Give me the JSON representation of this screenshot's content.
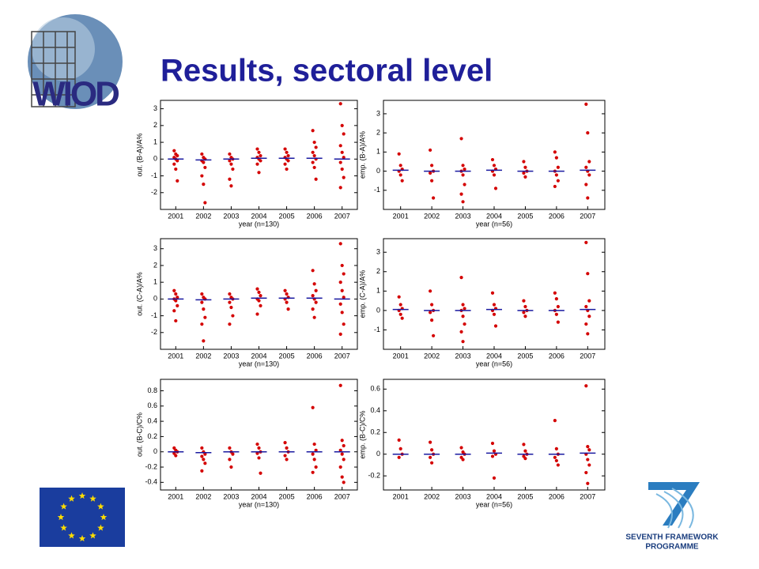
{
  "slide": {
    "title": "Results, sectoral level",
    "logo_text": "WIOD",
    "fp7_line1": "SEVENTH FRAMEWORK",
    "fp7_line2": "PROGRAMME"
  },
  "chart_data": [
    {
      "type": "strip",
      "ylabel": "out. (B-A)/A%",
      "xlabel": "year (n=130)",
      "color": "#d40000",
      "median_color": "#1a1aa0",
      "categories": [
        "2001",
        "2002",
        "2003",
        "2004",
        "2005",
        "2006",
        "2007"
      ],
      "values": [
        [
          0.5,
          0.3,
          0.2,
          0.1,
          0,
          -0.1,
          -0.3,
          -0.6,
          -1.3
        ],
        [
          0.3,
          0.1,
          0,
          -0.1,
          -0.2,
          -0.5,
          -1,
          -1.5,
          -2.6
        ],
        [
          0.3,
          0.1,
          0,
          -0.1,
          -0.3,
          -0.6,
          -1.2,
          -1.6
        ],
        [
          0.6,
          0.4,
          0.2,
          0.1,
          0,
          -0.1,
          -0.3,
          -0.8
        ],
        [
          0.6,
          0.4,
          0.2,
          0.1,
          0,
          -0.1,
          -0.3,
          -0.6
        ],
        [
          1.7,
          1,
          0.7,
          0.4,
          0.2,
          0,
          -0.2,
          -0.5,
          -1.2
        ],
        [
          3.3,
          2,
          1.5,
          0.8,
          0.4,
          0.1,
          -0.2,
          -0.6,
          -1.1,
          -1.7
        ]
      ],
      "medians": [
        0,
        -0.05,
        0,
        0.05,
        0.05,
        0.05,
        0
      ],
      "ylim": [
        -3,
        3.5
      ],
      "yticks": [
        -2,
        -1,
        0,
        1,
        2,
        3
      ]
    },
    {
      "type": "strip",
      "ylabel": "emp. (B-A)/A%",
      "xlabel": "year (n=56)",
      "color": "#d40000",
      "median_color": "#1a1aa0",
      "categories": [
        "2001",
        "2002",
        "2003",
        "2004",
        "2005",
        "2006",
        "2007"
      ],
      "values": [
        [
          0.9,
          0.3,
          0.1,
          0,
          -0.2,
          -0.5
        ],
        [
          1.1,
          0.3,
          0,
          -0.1,
          -0.5,
          -1.4
        ],
        [
          1.7,
          0.3,
          0.1,
          0,
          -0.2,
          -0.7,
          -1.2,
          -1.6
        ],
        [
          0.6,
          0.3,
          0.1,
          0,
          -0.2,
          -0.9
        ],
        [
          0.5,
          0.2,
          0,
          -0.1,
          -0.3
        ],
        [
          1,
          0.7,
          0.2,
          0,
          -0.2,
          -0.5,
          -0.8
        ],
        [
          3.5,
          2,
          0.5,
          0.2,
          0,
          -0.2,
          -0.7,
          -1.4
        ]
      ],
      "medians": [
        0.05,
        0,
        0,
        0.05,
        0,
        0,
        0.05
      ],
      "ylim": [
        -2,
        3.7
      ],
      "yticks": [
        -1,
        0,
        1,
        2,
        3
      ]
    },
    {
      "type": "strip",
      "ylabel": "out. (C-A)/A%",
      "xlabel": "year (n=130)",
      "color": "#d40000",
      "median_color": "#1a1aa0",
      "categories": [
        "2001",
        "2002",
        "2003",
        "2004",
        "2005",
        "2006",
        "2007"
      ],
      "values": [
        [
          0.5,
          0.3,
          0.1,
          0,
          -0.1,
          -0.4,
          -0.7,
          -1.3
        ],
        [
          0.3,
          0.1,
          0,
          -0.2,
          -0.6,
          -1.1,
          -1.5,
          -2.5
        ],
        [
          0.3,
          0.1,
          0,
          -0.2,
          -0.5,
          -1,
          -1.5
        ],
        [
          0.6,
          0.4,
          0.2,
          0,
          -0.1,
          -0.4,
          -0.9
        ],
        [
          0.5,
          0.3,
          0.1,
          0,
          -0.2,
          -0.6
        ],
        [
          1.7,
          0.9,
          0.5,
          0.2,
          0,
          -0.2,
          -0.6,
          -1.1
        ],
        [
          3.3,
          2,
          1.5,
          1,
          0.5,
          0.1,
          -0.3,
          -0.8,
          -1.5,
          -2.1
        ]
      ],
      "medians": [
        0,
        -0.05,
        0,
        0.05,
        0.05,
        0.05,
        0
      ],
      "ylim": [
        -3,
        3.6
      ],
      "yticks": [
        -2,
        -1,
        0,
        1,
        2,
        3
      ]
    },
    {
      "type": "strip",
      "ylabel": "emp. (C-A)/A%",
      "xlabel": "year (n=56)",
      "color": "#d40000",
      "median_color": "#1a1aa0",
      "categories": [
        "2001",
        "2002",
        "2003",
        "2004",
        "2005",
        "2006",
        "2007"
      ],
      "values": [
        [
          0.7,
          0.3,
          0.1,
          0,
          -0.2,
          -0.4
        ],
        [
          1,
          0.3,
          0,
          -0.1,
          -0.5,
          -1.3
        ],
        [
          1.7,
          0.3,
          0.1,
          0,
          -0.3,
          -0.7,
          -1.1,
          -1.6
        ],
        [
          0.9,
          0.3,
          0.1,
          0,
          -0.2,
          -0.8
        ],
        [
          0.5,
          0.2,
          0,
          -0.1,
          -0.3
        ],
        [
          0.9,
          0.6,
          0.2,
          0,
          -0.2,
          -0.6
        ],
        [
          3.5,
          1.9,
          0.5,
          0.2,
          0,
          -0.3,
          -0.7,
          -1.2
        ]
      ],
      "medians": [
        0.05,
        0,
        0,
        0.05,
        0,
        0,
        0.05
      ],
      "ylim": [
        -2,
        3.7
      ],
      "yticks": [
        -1,
        0,
        1,
        2,
        3
      ]
    },
    {
      "type": "strip",
      "ylabel": "out. (B-C)/C%",
      "xlabel": "year (n=130)",
      "color": "#d40000",
      "median_color": "#1a1aa0",
      "categories": [
        "2001",
        "2002",
        "2003",
        "2004",
        "2005",
        "2006",
        "2007"
      ],
      "values": [
        [
          0.05,
          0.02,
          0,
          -0.02,
          -0.05
        ],
        [
          0.05,
          0,
          -0.03,
          -0.06,
          -0.1,
          -0.15,
          -0.25
        ],
        [
          0.05,
          0,
          -0.03,
          -0.1,
          -0.2
        ],
        [
          0.1,
          0.05,
          0,
          -0.02,
          -0.08,
          -0.28
        ],
        [
          0.12,
          0.05,
          0,
          -0.05,
          -0.1
        ],
        [
          0.58,
          0.1,
          0.02,
          -0.03,
          -0.1,
          -0.2,
          -0.27
        ],
        [
          0.87,
          0.15,
          0.08,
          0.02,
          -0.03,
          -0.1,
          -0.2,
          -0.33,
          -0.4
        ]
      ],
      "medians": [
        0,
        -0.01,
        0,
        0,
        0,
        0,
        0
      ],
      "ylim": [
        -0.5,
        0.95
      ],
      "yticks": [
        -0.4,
        -0.2,
        0,
        0.2,
        0.4,
        0.6,
        0.8
      ]
    },
    {
      "type": "strip",
      "ylabel": "emp. (B-C)/C%",
      "xlabel": "year (n=56)",
      "color": "#d40000",
      "median_color": "#1a1aa0",
      "categories": [
        "2001",
        "2002",
        "2003",
        "2004",
        "2005",
        "2006",
        "2007"
      ],
      "values": [
        [
          0.13,
          0.05,
          0,
          -0.03
        ],
        [
          0.11,
          0.04,
          0,
          -0.03,
          -0.08
        ],
        [
          0.06,
          0.02,
          0,
          -0.03,
          -0.05
        ],
        [
          0.1,
          0.03,
          0,
          -0.02,
          -0.22
        ],
        [
          0.09,
          0.03,
          0,
          -0.02,
          -0.04
        ],
        [
          0.31,
          0.05,
          0,
          -0.03,
          -0.06,
          -0.1
        ],
        [
          0.63,
          0.07,
          0.04,
          0,
          -0.05,
          -0.1,
          -0.17,
          -0.27
        ]
      ],
      "medians": [
        0,
        0,
        0,
        0.01,
        0,
        0,
        0.01
      ],
      "ylim": [
        -0.33,
        0.69
      ],
      "yticks": [
        -0.2,
        0,
        0.2,
        0.4,
        0.6
      ]
    }
  ]
}
